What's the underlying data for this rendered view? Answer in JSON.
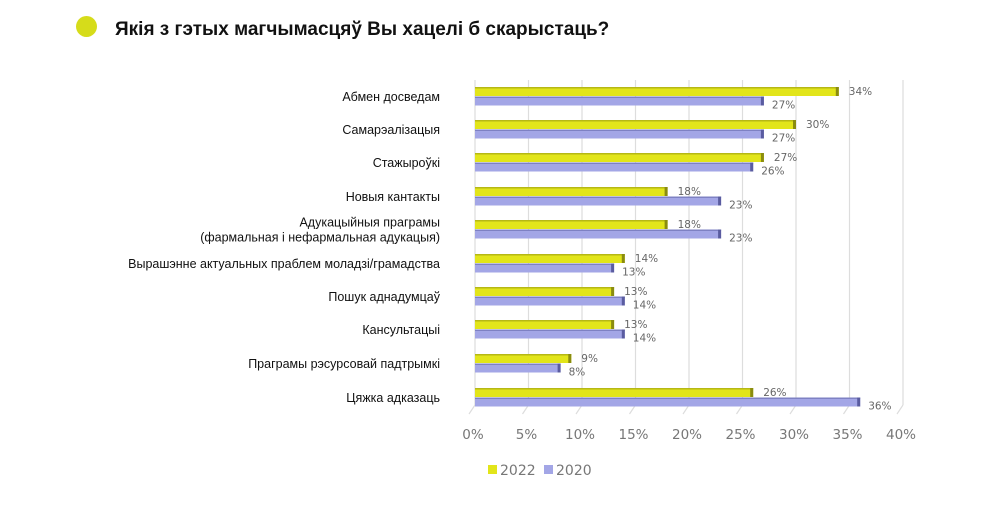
{
  "title": "Якія з гэтых магчымасцяў Вы хацелі б скарыстаць?",
  "colors": {
    "title_dot": "#d6dc1a",
    "2022": "#e2e51a",
    "2020": "#a3a6e6"
  },
  "chart_data": {
    "type": "bar",
    "orientation": "horizontal",
    "title": "Якія з гэтых магчымасцяў Вы хацелі б скарыстаць?",
    "categories": [
      [
        "Абмен досведам"
      ],
      [
        "Самарэалізацыя"
      ],
      [
        "Стажыроўкі"
      ],
      [
        "Новыя кантакты"
      ],
      [
        "Адукацыйныя праграмы",
        "(фармальная і нефармальная адукацыя)"
      ],
      [
        "Вырашэнне актуальных праблем моладзі/грамадства"
      ],
      [
        "Пошук аднадумцаў"
      ],
      [
        "Кансультацыі"
      ],
      [
        "Праграмы рэсурсовай падтрымкі"
      ],
      [
        "Цяжка адказаць"
      ]
    ],
    "series": [
      {
        "name": "2022",
        "values": [
          34,
          30,
          27,
          18,
          18,
          14,
          13,
          13,
          9,
          26
        ]
      },
      {
        "name": "2020",
        "values": [
          27,
          27,
          26,
          23,
          23,
          13,
          14,
          14,
          8,
          36
        ]
      }
    ],
    "xlim": [
      0,
      40
    ],
    "xticks": [
      "0%",
      "5%",
      "10%",
      "15%",
      "20%",
      "25%",
      "30%",
      "35%",
      "40%"
    ],
    "value_suffix": "%",
    "grid": true,
    "legend": "bottom"
  }
}
